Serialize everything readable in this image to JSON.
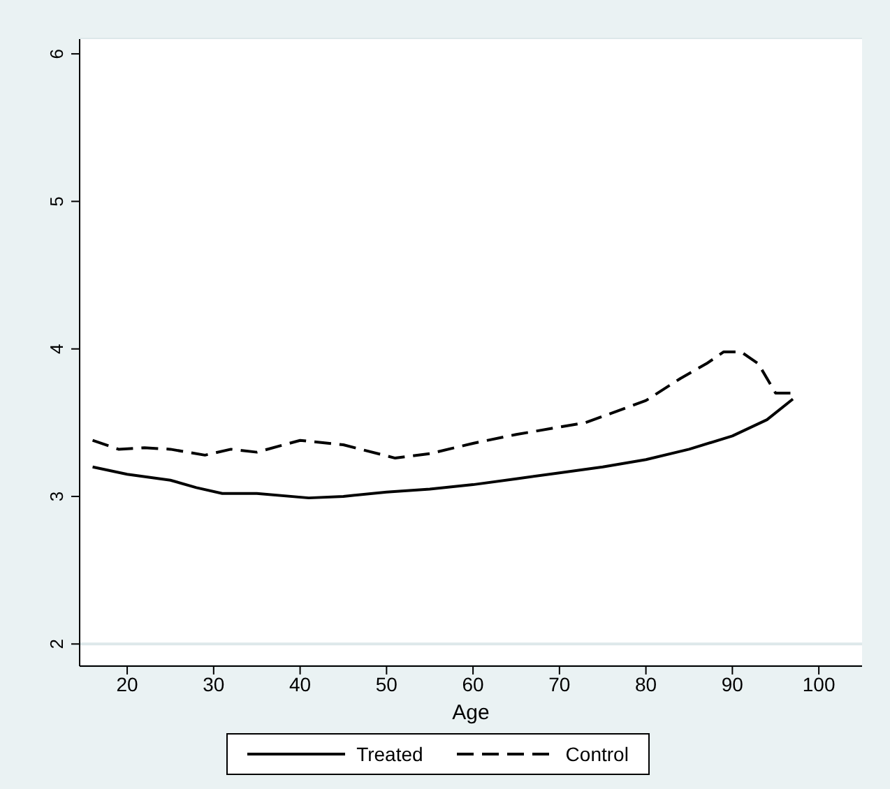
{
  "chart_data": {
    "type": "line",
    "xlabel": "Age",
    "xlim": [
      14.5,
      105
    ],
    "xticks": [
      20,
      30,
      40,
      50,
      60,
      70,
      80,
      90,
      100
    ],
    "ylim": [
      1.85,
      6.1
    ],
    "yticks": [
      2,
      3,
      4,
      5,
      6
    ],
    "grid": "y",
    "legend": "bottom",
    "marker": "none",
    "series": [
      {
        "name": "Treated",
        "color": "#000000",
        "line_style": "solid",
        "x": [
          16,
          20,
          25,
          28,
          31,
          35,
          41,
          45,
          50,
          55,
          60,
          65,
          70,
          75,
          80,
          85,
          90,
          94,
          97
        ],
        "values": [
          3.2,
          3.15,
          3.11,
          3.06,
          3.02,
          3.02,
          2.99,
          3.0,
          3.03,
          3.05,
          3.08,
          3.12,
          3.16,
          3.2,
          3.25,
          3.32,
          3.41,
          3.52,
          3.66
        ]
      },
      {
        "name": "Control",
        "color": "#000000",
        "line_style": "dashed",
        "x": [
          16,
          19,
          22,
          25,
          29,
          32,
          35,
          40,
          45,
          51,
          55,
          60,
          65,
          70,
          73,
          80,
          84,
          87,
          89,
          91,
          93,
          95,
          97
        ],
        "values": [
          3.38,
          3.32,
          3.33,
          3.32,
          3.28,
          3.32,
          3.3,
          3.38,
          3.35,
          3.26,
          3.29,
          3.36,
          3.42,
          3.47,
          3.5,
          3.65,
          3.8,
          3.9,
          3.98,
          3.98,
          3.9,
          3.7,
          3.7
        ]
      }
    ]
  }
}
